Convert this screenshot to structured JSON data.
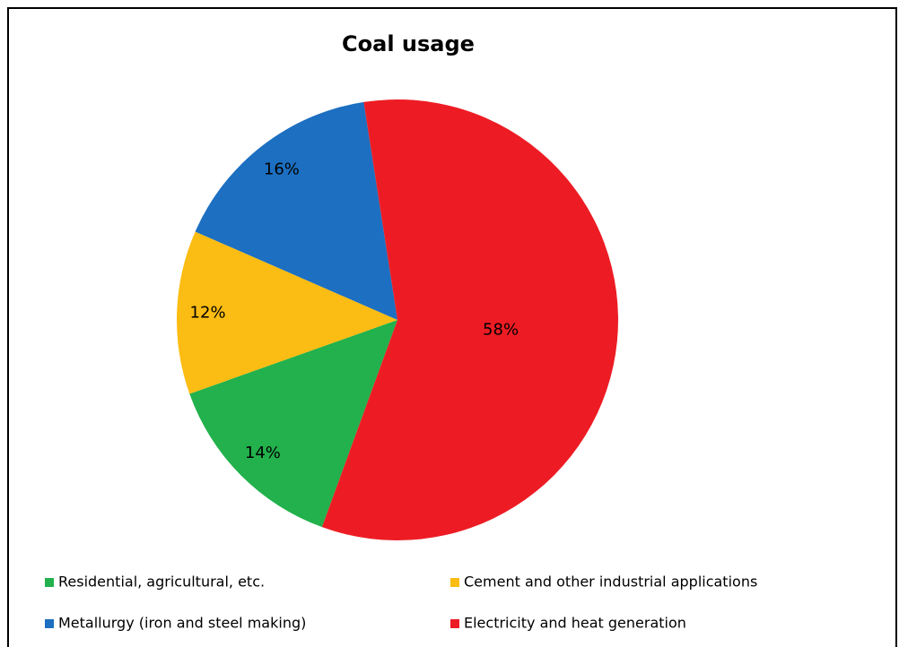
{
  "chart_data": {
    "type": "pie",
    "title": "Coal usage",
    "categories": [
      "Residential, agricultural, etc.",
      "Cement and other industrial applications",
      "Metallurgy (iron and steel making)",
      "Electricity and heat generation"
    ],
    "values": [
      14,
      12,
      16,
      58
    ],
    "value_labels": [
      "14%",
      "12%",
      "16%",
      "58%"
    ],
    "colors": [
      "#22b14c",
      "#fbbc13",
      "#1c6fc1",
      "#ed1c24"
    ],
    "legend": "bottom"
  }
}
